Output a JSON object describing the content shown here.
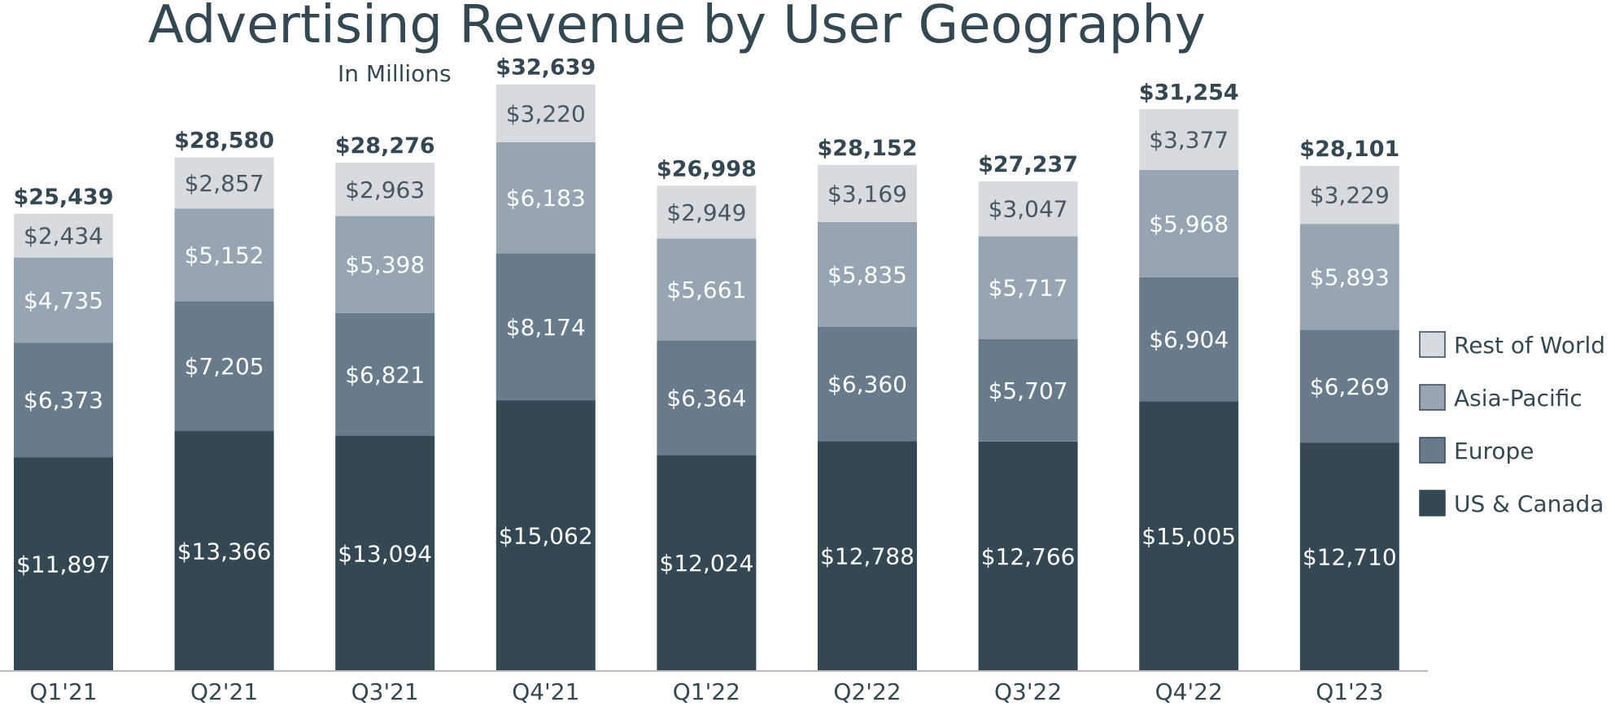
{
  "chart_data": {
    "type": "bar",
    "stacked": true,
    "title": "Advertising Revenue by User Geography",
    "subtitle": "In Millions",
    "xlabel": "",
    "ylabel": "",
    "ylim": [
      0,
      34000
    ],
    "grid": false,
    "legend_position": "right",
    "categories": [
      "Q1'21",
      "Q2'21",
      "Q3'21",
      "Q4'21",
      "Q1'22",
      "Q2'22",
      "Q3'22",
      "Q4'22",
      "Q1'23"
    ],
    "totals": [
      "$25,439",
      "$28,580",
      "$28,276",
      "$32,639",
      "$26,998",
      "$28,152",
      "$27,237",
      "$31,254",
      "$28,101"
    ],
    "series": [
      {
        "name": "US & Canada",
        "color": "#344854",
        "text_color": "#ffffff",
        "values": [
          11897,
          13366,
          13094,
          15062,
          12024,
          12788,
          12766,
          15005,
          12710
        ],
        "labels": [
          "$11,897",
          "$13,366",
          "$13,094",
          "$15,062",
          "$12,024",
          "$12,788",
          "$12,766",
          "$15,005",
          "$12,710"
        ]
      },
      {
        "name": "Europe",
        "color": "#687b8b",
        "text_color": "#ffffff",
        "values": [
          6373,
          7205,
          6821,
          8174,
          6364,
          6360,
          5707,
          6904,
          6269
        ],
        "labels": [
          "$6,373",
          "$7,205",
          "$6,821",
          "$8,174",
          "$6,364",
          "$6,360",
          "$5,707",
          "$6,904",
          "$6,269"
        ]
      },
      {
        "name": "Asia-Pacific",
        "color": "#95a5b2",
        "text_color": "#ffffff",
        "values": [
          4735,
          5152,
          5398,
          6183,
          5661,
          5835,
          5717,
          5968,
          5893
        ],
        "labels": [
          "$4,735",
          "$5,152",
          "$5,398",
          "$6,183",
          "$5,661",
          "$5,835",
          "$5,717",
          "$5,968",
          "$5,893"
        ]
      },
      {
        "name": "Rest of World",
        "color": "#d6dbdf",
        "text_color": "#4a5560",
        "values": [
          2434,
          2857,
          2963,
          3220,
          2949,
          3169,
          3047,
          3377,
          3229
        ],
        "labels": [
          "$2,434",
          "$2,857",
          "$2,963",
          "$3,220",
          "$2,949",
          "$3,169",
          "$3,047",
          "$3,377",
          "$3,229"
        ]
      }
    ],
    "legend_order": [
      "Rest of World",
      "Asia-Pacific",
      "Europe",
      "US & Canada"
    ]
  }
}
